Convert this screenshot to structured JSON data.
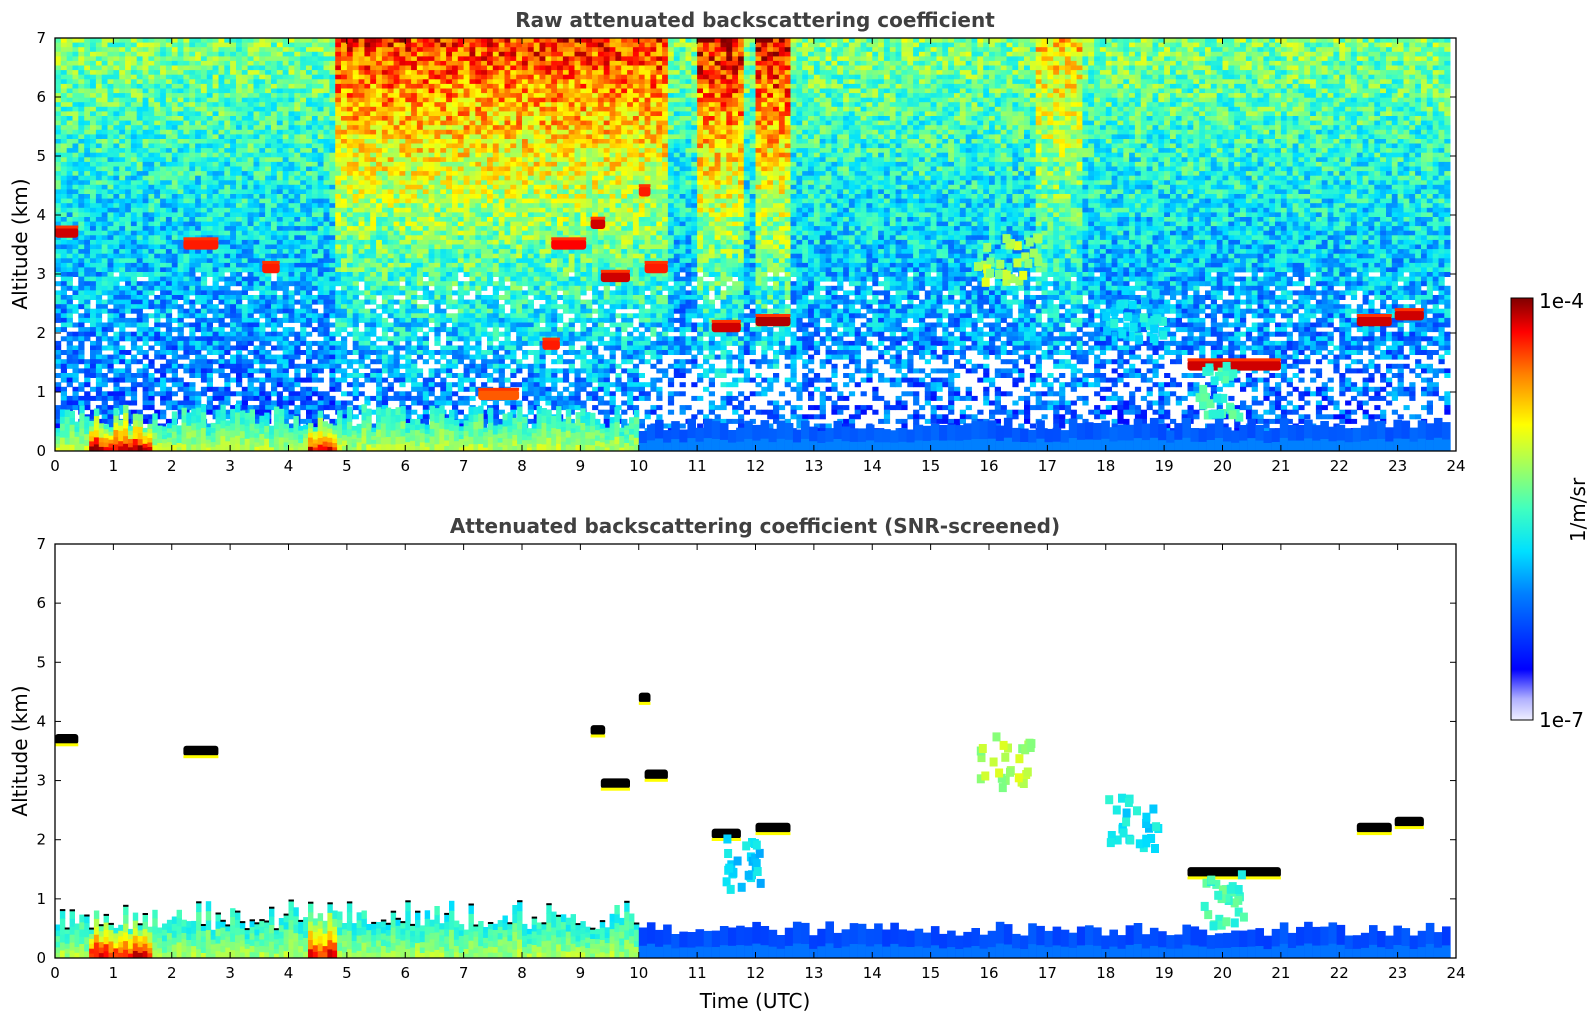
{
  "chart_data": [
    {
      "type": "heatmap",
      "id": "raw",
      "title": "Raw attenuated backscattering coefficient",
      "xlabel": "",
      "ylabel": "Altitude (km)",
      "xlim": [
        0,
        24
      ],
      "ylim": [
        0,
        7
      ],
      "xticks": [
        "0",
        "1",
        "2",
        "3",
        "4",
        "5",
        "6",
        "7",
        "8",
        "9",
        "10",
        "11",
        "12",
        "13",
        "14",
        "15",
        "16",
        "17",
        "18",
        "19",
        "20",
        "21",
        "22",
        "23",
        "24"
      ],
      "yticks": [
        "0",
        "1",
        "2",
        "3",
        "4",
        "5",
        "6",
        "7"
      ],
      "features": [
        {
          "kind": "boundary-layer",
          "x_start": 0,
          "x_end": 10,
          "top_km": 0.7,
          "level": 0.62
        },
        {
          "kind": "aerosol-base",
          "x_start": 10,
          "x_end": 23.9,
          "top_km": 0.45,
          "level": 0.22
        },
        {
          "kind": "cloud",
          "x": 0.2,
          "alt_km": 3.7,
          "width_h": 0.4,
          "level": 0.95
        },
        {
          "kind": "cloud",
          "x": 2.5,
          "alt_km": 3.5,
          "width_h": 0.6,
          "level": 0.9
        },
        {
          "kind": "cloud",
          "x": 3.7,
          "alt_km": 3.1,
          "width_h": 0.3,
          "level": 0.9
        },
        {
          "kind": "cloud",
          "x": 8.8,
          "alt_km": 3.5,
          "width_h": 0.6,
          "level": 0.92
        },
        {
          "kind": "cloud",
          "x": 9.3,
          "alt_km": 3.85,
          "width_h": 0.25,
          "level": 0.95
        },
        {
          "kind": "cloud",
          "x": 9.6,
          "alt_km": 2.95,
          "width_h": 0.5,
          "level": 0.95
        },
        {
          "kind": "cloud",
          "x": 10.3,
          "alt_km": 3.1,
          "width_h": 0.4,
          "level": 0.9
        },
        {
          "kind": "cloud",
          "x": 10.1,
          "alt_km": 4.4,
          "width_h": 0.2,
          "level": 0.9
        },
        {
          "kind": "cloud",
          "x": 8.5,
          "alt_km": 1.8,
          "width_h": 0.3,
          "level": 0.9
        },
        {
          "kind": "cloud",
          "x": 7.6,
          "alt_km": 0.95,
          "width_h": 0.7,
          "level": 0.85
        },
        {
          "kind": "cloud",
          "x": 11.5,
          "alt_km": 2.1,
          "width_h": 0.5,
          "level": 0.95
        },
        {
          "kind": "cloud",
          "x": 12.3,
          "alt_km": 2.2,
          "width_h": 0.6,
          "level": 0.97
        },
        {
          "kind": "cloud",
          "x": 20.2,
          "alt_km": 1.45,
          "width_h": 1.6,
          "level": 0.95
        },
        {
          "kind": "cloud",
          "x": 22.6,
          "alt_km": 2.2,
          "width_h": 0.6,
          "level": 0.95
        },
        {
          "kind": "cloud",
          "x": 23.2,
          "alt_km": 2.3,
          "width_h": 0.5,
          "level": 0.95
        },
        {
          "kind": "plume",
          "x": 16.3,
          "alt_km": 3.3,
          "width_h": 1.2,
          "level": 0.62
        },
        {
          "kind": "plume",
          "x": 18.5,
          "alt_km": 2.3,
          "width_h": 1.0,
          "level": 0.42
        },
        {
          "kind": "plume",
          "x": 20.0,
          "alt_km": 1.0,
          "width_h": 0.8,
          "level": 0.5
        }
      ]
    },
    {
      "type": "heatmap",
      "id": "screened",
      "title": "Attenuated backscattering coefficient (SNR-screened)",
      "xlabel": "Time (UTC)",
      "ylabel": "Altitude (km)",
      "xlim": [
        0,
        24
      ],
      "ylim": [
        0,
        7
      ],
      "xticks": [
        "0",
        "1",
        "2",
        "3",
        "4",
        "5",
        "6",
        "7",
        "8",
        "9",
        "10",
        "11",
        "12",
        "13",
        "14",
        "15",
        "16",
        "17",
        "18",
        "19",
        "20",
        "21",
        "22",
        "23",
        "24"
      ],
      "yticks": [
        "0",
        "1",
        "2",
        "3",
        "4",
        "5",
        "6",
        "7"
      ],
      "features": [
        {
          "kind": "boundary-layer",
          "x_start": 0,
          "x_end": 10,
          "top_km": 0.85,
          "level": 0.6
        },
        {
          "kind": "aerosol-base",
          "x_start": 10,
          "x_end": 23.9,
          "top_km": 0.5,
          "level": 0.2
        },
        {
          "kind": "cloud",
          "x": 0.2,
          "alt_km": 3.7,
          "width_h": 0.4,
          "level": 1.0
        },
        {
          "kind": "cloud",
          "x": 2.5,
          "alt_km": 3.5,
          "width_h": 0.6,
          "level": 0.9
        },
        {
          "kind": "cloud",
          "x": 9.3,
          "alt_km": 3.85,
          "width_h": 0.25,
          "level": 1.0
        },
        {
          "kind": "cloud",
          "x": 9.6,
          "alt_km": 2.95,
          "width_h": 0.5,
          "level": 1.0
        },
        {
          "kind": "cloud",
          "x": 10.3,
          "alt_km": 3.1,
          "width_h": 0.4,
          "level": 1.0
        },
        {
          "kind": "cloud",
          "x": 10.1,
          "alt_km": 4.4,
          "width_h": 0.2,
          "level": 1.0
        },
        {
          "kind": "cloud",
          "x": 11.5,
          "alt_km": 2.1,
          "width_h": 0.5,
          "level": 1.0
        },
        {
          "kind": "cloud",
          "x": 12.3,
          "alt_km": 2.2,
          "width_h": 0.6,
          "level": 1.0
        },
        {
          "kind": "cloud",
          "x": 20.2,
          "alt_km": 1.45,
          "width_h": 1.6,
          "level": 1.0
        },
        {
          "kind": "cloud",
          "x": 22.6,
          "alt_km": 2.2,
          "width_h": 0.6,
          "level": 1.0
        },
        {
          "kind": "cloud",
          "x": 23.2,
          "alt_km": 2.3,
          "width_h": 0.5,
          "level": 1.0
        },
        {
          "kind": "plume",
          "x": 16.3,
          "alt_km": 3.3,
          "width_h": 0.9,
          "level": 0.62
        },
        {
          "kind": "plume",
          "x": 18.5,
          "alt_km": 2.3,
          "width_h": 0.9,
          "level": 0.42
        },
        {
          "kind": "plume",
          "x": 20.0,
          "alt_km": 1.0,
          "width_h": 0.8,
          "level": 0.5
        },
        {
          "kind": "plume",
          "x": 11.8,
          "alt_km": 1.6,
          "width_h": 0.6,
          "level": 0.4
        }
      ]
    }
  ],
  "colorbar": {
    "label": "1/m/sr",
    "max_label": "1e-4",
    "min_label": "1e-7",
    "scale": "log",
    "colormap": "jet"
  },
  "colors": {
    "noise_clear": "#ffffff",
    "screened_black": "#000000",
    "title_gray": "#404040"
  }
}
